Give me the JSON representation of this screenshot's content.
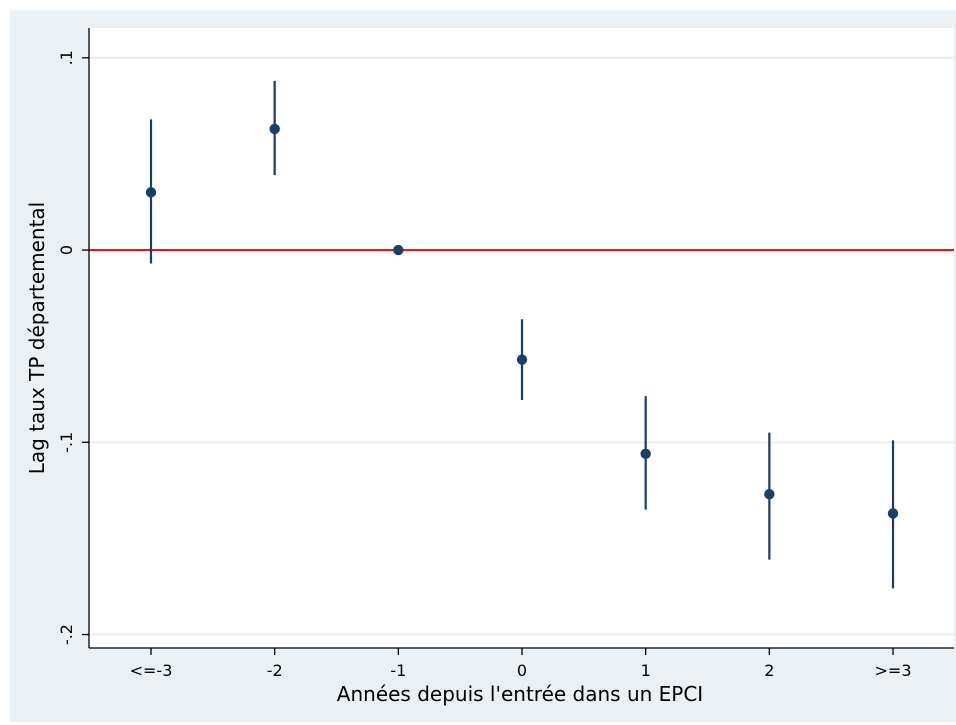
{
  "chart_data": {
    "type": "scatter",
    "title": "",
    "xlabel": "Années depuis l'entrée dans un EPCI",
    "ylabel": "Lag taux TP départemental",
    "categories": [
      "<=-3",
      "-2",
      "-1",
      "0",
      "1",
      "2",
      ">=3"
    ],
    "points": [
      {
        "x": "<=-3",
        "y": 0.03,
        "ci": [
          -0.007,
          0.068
        ]
      },
      {
        "x": "-2",
        "y": 0.063,
        "ci": [
          0.039,
          0.088
        ]
      },
      {
        "x": "-1",
        "y": 0.0,
        "ci": [
          0.0,
          0.0
        ]
      },
      {
        "x": "0",
        "y": -0.057,
        "ci": [
          -0.078,
          -0.036
        ]
      },
      {
        "x": "1",
        "y": -0.106,
        "ci": [
          -0.135,
          -0.076
        ]
      },
      {
        "x": "2",
        "y": -0.127,
        "ci": [
          -0.161,
          -0.095
        ]
      },
      {
        "x": ">=3",
        "y": -0.137,
        "ci": [
          -0.176,
          -0.099
        ]
      }
    ],
    "yticks": [
      {
        "value": 0.1,
        "label": ".1"
      },
      {
        "value": 0,
        "label": "0"
      },
      {
        "value": -0.1,
        "label": "-.1"
      },
      {
        "value": -0.2,
        "label": "-.2"
      }
    ],
    "ylim": [
      -0.207,
      0.1155
    ],
    "reference_line": {
      "y": 0,
      "color": "#e8161b"
    },
    "grid": true,
    "colors": {
      "marker": "#1a3f66",
      "background_outer": "#eaf0f3",
      "plot_background": "#ffffff",
      "grid": "#e8eef1"
    }
  }
}
